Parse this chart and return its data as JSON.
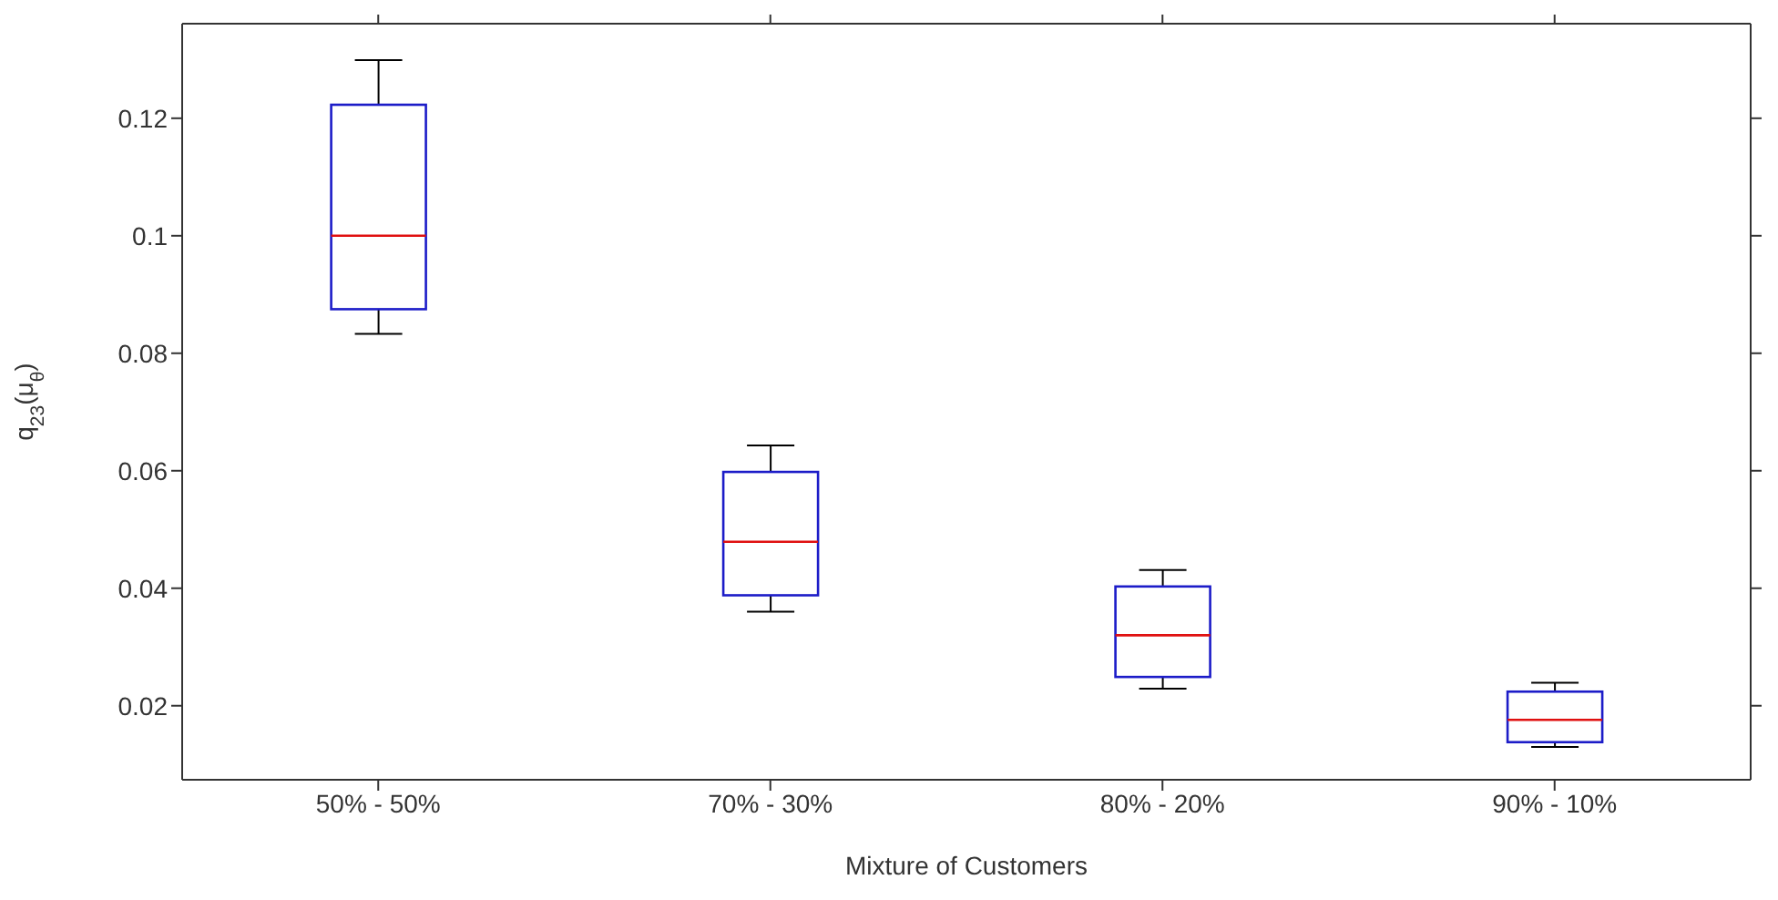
{
  "chart_data": {
    "type": "box",
    "xlabel": "Mixture of Customers",
    "ylabel": "q$_{23}$(μ$_{θ}$)",
    "categories": [
      "50% - 50%",
      "70% - 30%",
      "80% - 20%",
      "90% - 10%"
    ],
    "series": [
      {
        "color": "#1c1cc8",
        "boxes": [
          {
            "low": 0.0833,
            "q1": 0.0875,
            "median": 0.1,
            "q3": 0.1223,
            "high": 0.1299
          },
          {
            "low": 0.036,
            "q1": 0.0388,
            "median": 0.0479,
            "q3": 0.0598,
            "high": 0.0643
          },
          {
            "low": 0.0229,
            "q1": 0.0249,
            "median": 0.032,
            "q3": 0.0403,
            "high": 0.0431
          },
          {
            "low": 0.013,
            "q1": 0.0138,
            "median": 0.0176,
            "q3": 0.0224,
            "high": 0.0239
          }
        ]
      }
    ],
    "ylim": [
      0.0074,
      0.1361
    ],
    "yticks": [
      0.02,
      0.04,
      0.06,
      0.08,
      0.1,
      0.12
    ],
    "grid": false,
    "legend": false
  }
}
